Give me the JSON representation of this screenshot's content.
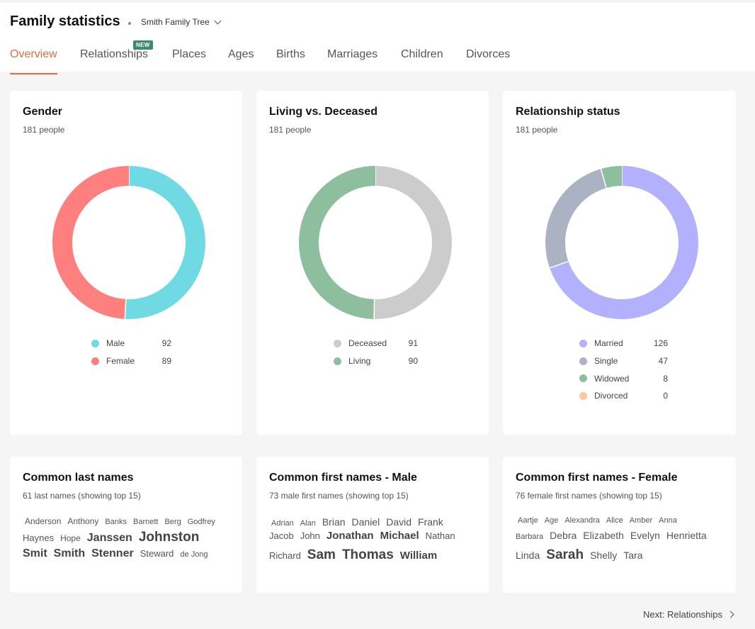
{
  "header": {
    "title": "Family statistics",
    "tree_name": "Smith Family Tree",
    "new_badge": "NEW",
    "tabs": [
      {
        "label": "Overview"
      },
      {
        "label": "Relationships"
      },
      {
        "label": "Places"
      },
      {
        "label": "Ages"
      },
      {
        "label": "Births"
      },
      {
        "label": "Marriages"
      },
      {
        "label": "Children"
      },
      {
        "label": "Divorces"
      }
    ],
    "accent_color": "#e56a3f"
  },
  "charts": {
    "gender": {
      "title": "Gender",
      "subtitle": "181 people",
      "items": [
        {
          "label": "Male",
          "value": 92,
          "color": "#6fd9e4"
        },
        {
          "label": "Female",
          "value": 89,
          "color": "#fd7f7e"
        }
      ]
    },
    "living": {
      "title": "Living vs. Deceased",
      "subtitle": "181 people",
      "items": [
        {
          "label": "Deceased",
          "value": 91,
          "color": "#cccccc"
        },
        {
          "label": "Living",
          "value": 90,
          "color": "#8dbf9f"
        }
      ]
    },
    "relationship": {
      "title": "Relationship status",
      "subtitle": "181 people",
      "items": [
        {
          "label": "Married",
          "value": 126,
          "color": "#b3b0fd"
        },
        {
          "label": "Single",
          "value": 47,
          "color": "#aab2c3"
        },
        {
          "label": "Widowed",
          "value": 8,
          "color": "#8dbf9f"
        },
        {
          "label": "Divorced",
          "value": 0,
          "color": "#fdc897"
        }
      ]
    }
  },
  "clouds": {
    "last": {
      "title": "Common last names",
      "subtitle": "61 last names (showing top 15)",
      "lines": [
        [
          {
            "t": "Anderson",
            "s": 12,
            "w": 400
          },
          {
            "t": "Anthony",
            "s": 12,
            "w": 400
          },
          {
            "t": "Banks",
            "s": 11,
            "w": 400
          },
          {
            "t": "Barnett",
            "s": 11,
            "w": 400
          },
          {
            "t": "Berg",
            "s": 11,
            "w": 400
          },
          {
            "t": "Godfrey",
            "s": 11,
            "w": 400
          }
        ],
        [
          {
            "t": "Haynes",
            "s": 13,
            "w": 400
          },
          {
            "t": "Hope",
            "s": 12,
            "w": 400
          },
          {
            "t": "Janssen",
            "s": 16,
            "w": 700
          },
          {
            "t": "Johnston",
            "s": 19,
            "w": 700
          }
        ],
        [
          {
            "t": "Smit",
            "s": 16,
            "w": 700
          },
          {
            "t": "Smith",
            "s": 16,
            "w": 700
          },
          {
            "t": "Stenner",
            "s": 16,
            "w": 700
          },
          {
            "t": "Steward",
            "s": 13,
            "w": 400
          },
          {
            "t": "de Jong",
            "s": 11,
            "w": 400
          }
        ]
      ]
    },
    "male": {
      "title": "Common first names - Male",
      "subtitle": "73 male first names (showing top 15)",
      "lines": [
        [
          {
            "t": "Adrian",
            "s": 11,
            "w": 400
          },
          {
            "t": "Alan",
            "s": 11,
            "w": 400
          },
          {
            "t": "Brian",
            "s": 14,
            "w": 400
          },
          {
            "t": "Daniel",
            "s": 14,
            "w": 400
          },
          {
            "t": "David",
            "s": 14,
            "w": 400
          },
          {
            "t": "Frank",
            "s": 14,
            "w": 400
          }
        ],
        [
          {
            "t": "Jacob",
            "s": 13,
            "w": 400
          },
          {
            "t": "John",
            "s": 13,
            "w": 400
          },
          {
            "t": "Jonathan",
            "s": 15,
            "w": 700
          },
          {
            "t": "Michael",
            "s": 15,
            "w": 700
          },
          {
            "t": "Nathan",
            "s": 13,
            "w": 400
          }
        ],
        [
          {
            "t": "Richard",
            "s": 13,
            "w": 400
          },
          {
            "t": "Sam",
            "s": 19,
            "w": 700
          },
          {
            "t": "Thomas",
            "s": 19,
            "w": 700
          },
          {
            "t": "William",
            "s": 15,
            "w": 700
          }
        ]
      ]
    },
    "female": {
      "title": "Common first names - Female",
      "subtitle": "76 female first names (showing top 15)",
      "lines": [
        [
          {
            "t": "Aartje",
            "s": 11,
            "w": 400
          },
          {
            "t": "Age",
            "s": 11,
            "w": 400
          },
          {
            "t": "Alexandra",
            "s": 11,
            "w": 400
          },
          {
            "t": "Alice",
            "s": 11,
            "w": 400
          },
          {
            "t": "Amber",
            "s": 11,
            "w": 400
          },
          {
            "t": "Anna",
            "s": 11,
            "w": 400
          }
        ],
        [
          {
            "t": "Barbara",
            "s": 11,
            "w": 400
          },
          {
            "t": "Debra",
            "s": 14,
            "w": 400
          },
          {
            "t": "Elizabeth",
            "s": 14,
            "w": 400
          },
          {
            "t": "Evelyn",
            "s": 14,
            "w": 400
          },
          {
            "t": "Henrietta",
            "s": 14,
            "w": 400
          }
        ],
        [
          {
            "t": "Linda",
            "s": 14,
            "w": 400
          },
          {
            "t": "Sarah",
            "s": 19,
            "w": 700
          },
          {
            "t": "Shelly",
            "s": 14,
            "w": 400
          },
          {
            "t": "Tara",
            "s": 14,
            "w": 400
          }
        ]
      ]
    }
  },
  "footer": {
    "next_label": "Next: Relationships"
  }
}
